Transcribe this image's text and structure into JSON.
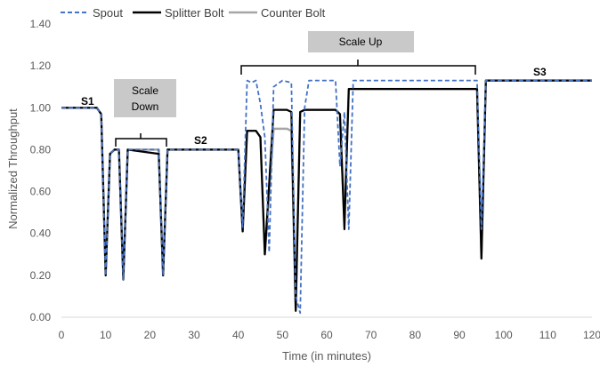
{
  "chart_data": {
    "type": "line",
    "xlabel": "Time (in minutes)",
    "ylabel": "Normalized Throughput",
    "xlim": [
      0,
      120
    ],
    "ylim": [
      0,
      1.4
    ],
    "xticks": [
      "0",
      "10",
      "20",
      "30",
      "40",
      "50",
      "60",
      "70",
      "80",
      "90",
      "100",
      "110",
      "120"
    ],
    "yticks": [
      "0.00",
      "0.20",
      "0.40",
      "0.60",
      "0.80",
      "1.00",
      "1.20",
      "1.40"
    ],
    "grid": "none",
    "legend": "top-left",
    "colors": {
      "spout": "#4472c4",
      "splitter": "#000000",
      "counter": "#a6a6a6",
      "box": "#c9c9c9"
    },
    "series": [
      {
        "name": "Spout",
        "style": "dashed",
        "points": [
          [
            0,
            1.0
          ],
          [
            8,
            1.0
          ],
          [
            9,
            0.97
          ],
          [
            10,
            0.2
          ],
          [
            11,
            0.78
          ],
          [
            12,
            0.8
          ],
          [
            13,
            0.8
          ],
          [
            14,
            0.18
          ],
          [
            15,
            0.8
          ],
          [
            22,
            0.8
          ],
          [
            23,
            0.2
          ],
          [
            24,
            0.8
          ],
          [
            40,
            0.8
          ],
          [
            41,
            0.43
          ],
          [
            42,
            1.13
          ],
          [
            43,
            1.12
          ],
          [
            44,
            1.13
          ],
          [
            45,
            1.02
          ],
          [
            46,
            0.86
          ],
          [
            47,
            0.31
          ],
          [
            48,
            1.1
          ],
          [
            50,
            1.13
          ],
          [
            52,
            1.12
          ],
          [
            53,
            0.1
          ],
          [
            54,
            0.02
          ],
          [
            55,
            1.0
          ],
          [
            56,
            1.13
          ],
          [
            62,
            1.13
          ],
          [
            63,
            0.72
          ],
          [
            64,
            0.98
          ],
          [
            65,
            0.42
          ],
          [
            66,
            1.13
          ],
          [
            94,
            1.13
          ],
          [
            95,
            0.42
          ],
          [
            96,
            1.13
          ],
          [
            120,
            1.13
          ]
        ]
      },
      {
        "name": "Splitter Bolt",
        "style": "solid",
        "points": [
          [
            0,
            1.0
          ],
          [
            8,
            1.0
          ],
          [
            9,
            0.97
          ],
          [
            10,
            0.2
          ],
          [
            11,
            0.78
          ],
          [
            12,
            0.8
          ],
          [
            13,
            0.8
          ],
          [
            14,
            0.18
          ],
          [
            15,
            0.8
          ],
          [
            22,
            0.78
          ],
          [
            23,
            0.2
          ],
          [
            24,
            0.8
          ],
          [
            40,
            0.8
          ],
          [
            41,
            0.41
          ],
          [
            42,
            0.89
          ],
          [
            44,
            0.89
          ],
          [
            45,
            0.86
          ],
          [
            46,
            0.3
          ],
          [
            48,
            0.99
          ],
          [
            51,
            0.99
          ],
          [
            52,
            0.98
          ],
          [
            53,
            0.03
          ],
          [
            54,
            0.98
          ],
          [
            55,
            0.99
          ],
          [
            62,
            0.99
          ],
          [
            63,
            0.97
          ],
          [
            64,
            0.42
          ],
          [
            65,
            1.09
          ],
          [
            94,
            1.09
          ],
          [
            95,
            0.28
          ],
          [
            96,
            1.13
          ],
          [
            120,
            1.13
          ]
        ]
      },
      {
        "name": "Counter Bolt",
        "style": "solid",
        "points": [
          [
            0,
            1.0
          ],
          [
            8,
            1.0
          ],
          [
            9,
            0.97
          ],
          [
            10,
            0.2
          ],
          [
            11,
            0.78
          ],
          [
            12,
            0.8
          ],
          [
            13,
            0.8
          ],
          [
            14,
            0.18
          ],
          [
            15,
            0.8
          ],
          [
            22,
            0.8
          ],
          [
            23,
            0.2
          ],
          [
            24,
            0.8
          ],
          [
            40,
            0.8
          ],
          [
            41,
            0.41
          ],
          [
            42,
            0.89
          ],
          [
            44,
            0.89
          ],
          [
            45,
            0.86
          ],
          [
            46,
            0.3
          ],
          [
            48,
            0.9
          ],
          [
            51,
            0.9
          ],
          [
            52,
            0.89
          ],
          [
            53,
            0.04
          ],
          [
            54,
            0.98
          ],
          [
            55,
            0.99
          ],
          [
            62,
            0.99
          ],
          [
            63,
            0.97
          ],
          [
            64,
            0.47
          ],
          [
            65,
            1.09
          ],
          [
            94,
            1.09
          ],
          [
            95,
            0.28
          ],
          [
            96,
            1.13
          ],
          [
            120,
            1.13
          ]
        ]
      }
    ],
    "annotations": {
      "s1": "S1",
      "s2": "S2",
      "s3": "S3",
      "scale_down": [
        "Scale",
        "Down"
      ],
      "scale_up": "Scale Up"
    }
  }
}
